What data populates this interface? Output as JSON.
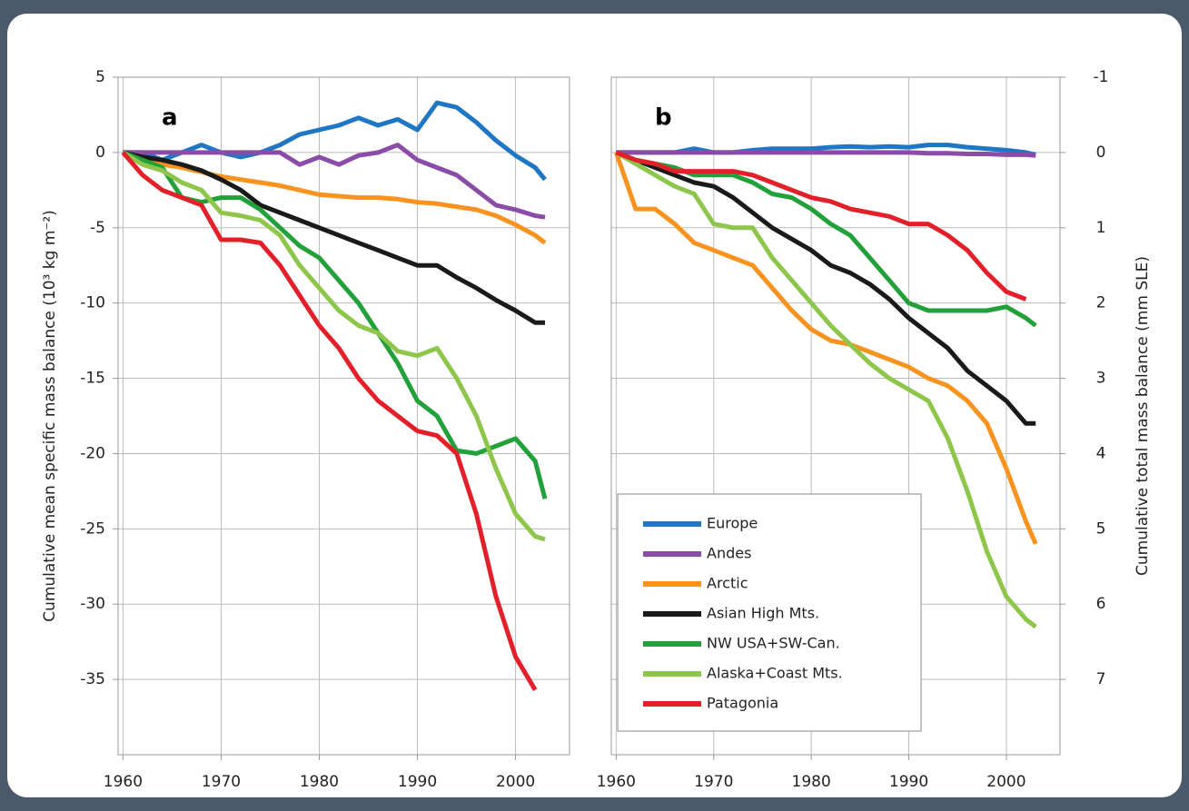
{
  "chart_data": [
    {
      "type": "line",
      "panel_label": "a",
      "y_label": "Cumulative mean specific mass balance (10³ kg m⁻²)",
      "x": [
        1960,
        1962,
        1964,
        1966,
        1968,
        1970,
        1972,
        1974,
        1976,
        1978,
        1980,
        1982,
        1984,
        1986,
        1988,
        1990,
        1992,
        1994,
        1996,
        1998,
        2000,
        2002,
        2003
      ],
      "xlim": [
        1959.5,
        2005.5
      ],
      "xticks": [
        1960,
        1970,
        1980,
        1990,
        2000
      ],
      "ylim": [
        -40,
        5
      ],
      "yticks": [
        5,
        0,
        -5,
        -10,
        -15,
        -20,
        -25,
        -30,
        -35
      ],
      "grid": true,
      "series": [
        {
          "color": "#1f77c4",
          "values": [
            0,
            0,
            -0.5,
            0,
            0.5,
            0,
            -0.3,
            0,
            0.5,
            1.2,
            1.5,
            1.8,
            2.3,
            1.8,
            2.2,
            1.5,
            3.3,
            3,
            2,
            0.8,
            -0.2,
            -1,
            -1.8
          ]
        },
        {
          "color": "#8b4ca8",
          "values": [
            0,
            0,
            0,
            0,
            0,
            0,
            0,
            0,
            0,
            -0.8,
            -0.3,
            -0.8,
            -0.2,
            0,
            0.5,
            -0.5,
            -1,
            -1.5,
            -2.5,
            -3.5,
            -3.8,
            -4.2,
            -4.3
          ]
        },
        {
          "color": "#f7931e",
          "values": [
            0,
            -0.5,
            -0.8,
            -1,
            -1.3,
            -1.6,
            -1.8,
            -2,
            -2.2,
            -2.5,
            -2.8,
            -2.9,
            -3,
            -3,
            -3.1,
            -3.3,
            -3.4,
            -3.6,
            -3.8,
            -4.2,
            -4.8,
            -5.5,
            -6
          ]
        },
        {
          "color": "#1a1a1a",
          "values": [
            0,
            -0.3,
            -0.5,
            -0.8,
            -1.2,
            -1.8,
            -2.5,
            -3.5,
            -4,
            -4.5,
            -5,
            -5.5,
            -6,
            -6.5,
            -7,
            -7.5,
            -7.5,
            -8.3,
            -9,
            -9.8,
            -10.5,
            -11.3,
            -11.3
          ]
        },
        {
          "color": "#22a03a",
          "values": [
            0,
            -0.5,
            -1,
            -3,
            -3.3,
            -3,
            -3,
            -3.8,
            -5,
            -6.2,
            -7,
            -8.5,
            -10,
            -12,
            -14,
            -16.5,
            -17.5,
            -19.8,
            -20,
            -19.5,
            -19,
            -20.5,
            -23
          ]
        },
        {
          "color": "#8dc64a",
          "values": [
            0,
            -0.8,
            -1.2,
            -2,
            -2.5,
            -4,
            -4.2,
            -4.5,
            -5.5,
            -7.5,
            -9,
            -10.5,
            -11.5,
            -12,
            -13.2,
            -13.5,
            -13,
            -15,
            -17.5,
            -21,
            -24,
            -25.5,
            -25.7
          ]
        },
        {
          "color": "#e3202a",
          "values": [
            0,
            -1.5,
            -2.5,
            -3,
            -3.5,
            -5.8,
            -5.8,
            -6,
            -7.5,
            -9.5,
            -11.5,
            -13,
            -15,
            -16.5,
            -17.5,
            -18.5,
            -18.8,
            -20,
            -24,
            -29.5,
            -33.5,
            -35.7,
            null
          ]
        }
      ]
    },
    {
      "type": "line",
      "panel_label": "b",
      "y_label": "Cumulative total mass balance (mm SLE)",
      "x": [
        1960,
        1962,
        1964,
        1966,
        1968,
        1970,
        1972,
        1974,
        1976,
        1978,
        1980,
        1982,
        1984,
        1986,
        1988,
        1990,
        1992,
        1994,
        1996,
        1998,
        2000,
        2002,
        2003
      ],
      "xlim": [
        1959.5,
        2005.5
      ],
      "xticks": [
        1960,
        1970,
        1980,
        1990,
        2000
      ],
      "ylim": [
        8,
        -1
      ],
      "yticks": [
        -1,
        0,
        1,
        2,
        3,
        4,
        5,
        6,
        7
      ],
      "grid": true,
      "legend": "lower left",
      "series": [
        {
          "name": "Europe",
          "color": "#1f77c4",
          "values": [
            0,
            0,
            0,
            0,
            -0.05,
            0,
            0,
            -0.03,
            -0.05,
            -0.05,
            -0.05,
            -0.07,
            -0.08,
            -0.07,
            -0.08,
            -0.07,
            -0.1,
            -0.1,
            -0.07,
            -0.05,
            -0.03,
            0,
            0.03
          ]
        },
        {
          "name": "Andes",
          "color": "#8b4ca8",
          "values": [
            0,
            0,
            0,
            0,
            0,
            0,
            0,
            0,
            0,
            0,
            0,
            0,
            0,
            0,
            0,
            0,
            0.01,
            0.01,
            0.02,
            0.02,
            0.03,
            0.03,
            0.04
          ]
        },
        {
          "name": "Arctic",
          "color": "#f7931e",
          "values": [
            0,
            0.75,
            0.75,
            0.95,
            1.2,
            1.3,
            1.4,
            1.5,
            1.8,
            2.1,
            2.35,
            2.5,
            2.55,
            2.65,
            2.75,
            2.85,
            3,
            3.1,
            3.3,
            3.6,
            4.2,
            4.9,
            5.2
          ]
        },
        {
          "name": "Asian High Mts.",
          "color": "#1a1a1a",
          "values": [
            0,
            0.1,
            0.2,
            0.3,
            0.4,
            0.45,
            0.6,
            0.8,
            1,
            1.15,
            1.3,
            1.5,
            1.6,
            1.75,
            1.95,
            2.2,
            2.4,
            2.6,
            2.9,
            3.1,
            3.3,
            3.6,
            3.6
          ]
        },
        {
          "name": "NW USA+SW-Can.",
          "color": "#22a03a",
          "values": [
            0,
            0.1,
            0.15,
            0.2,
            0.3,
            0.3,
            0.3,
            0.4,
            0.55,
            0.6,
            0.75,
            0.95,
            1.1,
            1.4,
            1.7,
            2,
            2.1,
            2.1,
            2.1,
            2.1,
            2.05,
            2.2,
            2.3
          ]
        },
        {
          "name": "Alaska+Coast Mts.",
          "color": "#8dc64a",
          "values": [
            0,
            0.15,
            0.3,
            0.45,
            0.55,
            0.95,
            1,
            1,
            1.4,
            1.7,
            2,
            2.3,
            2.55,
            2.8,
            3,
            3.15,
            3.3,
            3.8,
            4.5,
            5.3,
            5.9,
            6.2,
            6.3
          ]
        },
        {
          "name": "Patagonia",
          "color": "#e3202a",
          "values": [
            0,
            0.1,
            0.15,
            0.25,
            0.25,
            0.25,
            0.25,
            0.3,
            0.4,
            0.5,
            0.6,
            0.65,
            0.75,
            0.8,
            0.85,
            0.95,
            0.95,
            1.1,
            1.3,
            1.6,
            1.85,
            1.95,
            null
          ]
        }
      ]
    }
  ]
}
